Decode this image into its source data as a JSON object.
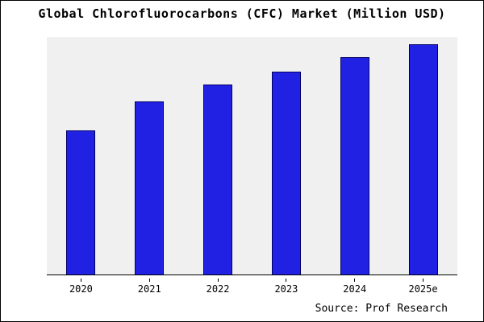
{
  "title": "Global Chlorofluorocarbons (CFC) Market (Million USD)",
  "source": "Source: Prof Research",
  "colors": {
    "bar_fill": "#2121e3",
    "bar_border": "#000066",
    "plot_bg": "#f0f0f0",
    "axis": "#000000"
  },
  "chart_data": {
    "type": "bar",
    "categories": [
      "2020",
      "2021",
      "2022",
      "2023",
      "2024",
      "2025e"
    ],
    "values": [
      100,
      120,
      132,
      141,
      151,
      160
    ],
    "title": "Global Chlorofluorocarbons (CFC) Market (Million USD)",
    "xlabel": "",
    "ylabel": "",
    "ylim": [
      0,
      165
    ],
    "grid": false,
    "legend": false,
    "annotation": "Source: Prof Research"
  }
}
